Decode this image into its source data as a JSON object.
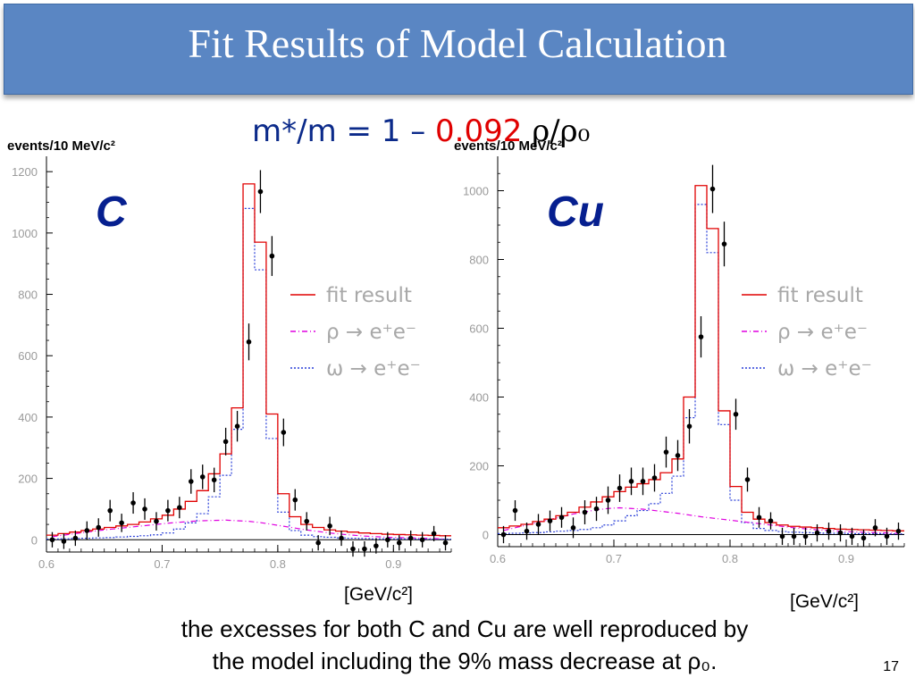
{
  "slide": {
    "title": "Fit Results of Model Calculation",
    "formula_prefix": "m*/m = 1 – ",
    "formula_coefficient": "0.092",
    "formula_suffix": " ρ/ρ₀",
    "caption_line1": "the excesses for both C and Cu are well reproduced by",
    "caption_line2": "the model including the 9% mass decrease at ρ₀.",
    "page_number": "17",
    "colors": {
      "banner": "#5a86c3",
      "nucleus_label": "#061f8f",
      "fit": "#e00000",
      "rho": "#e000e0",
      "omega": "#2a3fd8"
    }
  },
  "chart_data": [
    {
      "type": "histogram",
      "panel_label": "C",
      "ylabel": "events/10 MeV/c²",
      "xlabel_unit": "[GeV/c²]",
      "xlim": [
        0.6,
        0.95
      ],
      "ylim": [
        -40,
        1250
      ],
      "xticks": [
        "0.6",
        "0.7",
        "0.8",
        "0.9"
      ],
      "yticks": [
        "0",
        "200",
        "400",
        "600",
        "800",
        "1000",
        "1200"
      ],
      "legend": [
        "fit result",
        "ρ → e⁺e⁻",
        "ω → e⁺e⁻"
      ],
      "legend_position": "right",
      "bins": {
        "edges": [
          0.6,
          0.61,
          0.62,
          0.63,
          0.64,
          0.65,
          0.66,
          0.67,
          0.68,
          0.69,
          0.7,
          0.71,
          0.72,
          0.73,
          0.74,
          0.75,
          0.76,
          0.77,
          0.78,
          0.79,
          0.8,
          0.81,
          0.82,
          0.83,
          0.84,
          0.85,
          0.86,
          0.87,
          0.88,
          0.89,
          0.9,
          0.91,
          0.92,
          0.93,
          0.94,
          0.95
        ],
        "fit": [
          15,
          20,
          25,
          30,
          35,
          40,
          45,
          50,
          58,
          68,
          80,
          100,
          125,
          160,
          215,
          280,
          430,
          1160,
          970,
          410,
          150,
          75,
          50,
          40,
          32,
          28,
          25,
          22,
          20,
          18,
          17,
          16,
          15,
          14,
          13
        ],
        "rho": [
          10,
          15,
          20,
          25,
          30,
          34,
          38,
          42,
          46,
          50,
          54,
          57,
          60,
          62,
          63,
          64,
          62,
          60,
          56,
          50,
          44,
          38,
          32,
          27,
          22,
          18,
          15,
          12,
          10,
          8,
          7,
          6,
          5,
          4,
          3
        ],
        "omega": [
          2,
          3,
          4,
          5,
          6,
          7,
          9,
          11,
          13,
          16,
          22,
          35,
          55,
          85,
          140,
          210,
          360,
          1080,
          880,
          330,
          90,
          30,
          15,
          10,
          8,
          6,
          5,
          4,
          3,
          3,
          3,
          3,
          2,
          2,
          2
        ]
      },
      "points": {
        "x": [
          0.605,
          0.615,
          0.625,
          0.635,
          0.645,
          0.655,
          0.665,
          0.675,
          0.685,
          0.695,
          0.705,
          0.715,
          0.725,
          0.735,
          0.745,
          0.755,
          0.765,
          0.775,
          0.785,
          0.795,
          0.805,
          0.815,
          0.825,
          0.835,
          0.845,
          0.855,
          0.865,
          0.875,
          0.885,
          0.895,
          0.905,
          0.915,
          0.925,
          0.935,
          0.945
        ],
        "y": [
          0,
          -5,
          5,
          30,
          40,
          95,
          55,
          120,
          100,
          60,
          95,
          105,
          190,
          205,
          195,
          320,
          370,
          645,
          1135,
          925,
          350,
          130,
          60,
          -10,
          45,
          5,
          -30,
          -30,
          -20,
          0,
          -10,
          5,
          0,
          20,
          -10
        ],
        "err": [
          25,
          25,
          25,
          30,
          30,
          35,
          30,
          35,
          35,
          30,
          35,
          35,
          40,
          40,
          40,
          45,
          50,
          60,
          70,
          65,
          45,
          35,
          30,
          25,
          30,
          25,
          25,
          25,
          25,
          25,
          25,
          25,
          25,
          25,
          25
        ]
      }
    },
    {
      "type": "histogram",
      "panel_label": "Cu",
      "ylabel": "events/10 MeV/c²",
      "xlabel_unit": "[GeV/c²]",
      "xlim": [
        0.6,
        0.95
      ],
      "ylim": [
        -35,
        1100
      ],
      "xticks": [
        "0.6",
        "0.7",
        "0.8",
        "0.9"
      ],
      "yticks": [
        "0",
        "200",
        "400",
        "600",
        "800",
        "1000"
      ],
      "legend": [
        "fit result",
        "ρ → e⁺e⁻",
        "ω → e⁺e⁻"
      ],
      "legend_position": "right",
      "bins": {
        "edges": [
          0.6,
          0.61,
          0.62,
          0.63,
          0.64,
          0.65,
          0.66,
          0.67,
          0.68,
          0.69,
          0.7,
          0.71,
          0.72,
          0.73,
          0.74,
          0.75,
          0.76,
          0.77,
          0.78,
          0.79,
          0.8,
          0.81,
          0.82,
          0.83,
          0.84,
          0.85,
          0.86,
          0.87,
          0.88,
          0.89,
          0.9,
          0.91,
          0.92,
          0.93,
          0.94,
          0.95
        ],
        "fit": [
          20,
          25,
          30,
          38,
          45,
          55,
          65,
          80,
          95,
          110,
          125,
          138,
          148,
          160,
          180,
          220,
          400,
          1015,
          890,
          360,
          140,
          65,
          45,
          35,
          28,
          24,
          22,
          20,
          18,
          16,
          15,
          14,
          13,
          12,
          11
        ],
        "rho": [
          12,
          20,
          28,
          36,
          44,
          52,
          60,
          66,
          72,
          76,
          78,
          76,
          74,
          70,
          66,
          62,
          57,
          52,
          48,
          44,
          40,
          36,
          32,
          28,
          24,
          20,
          17,
          14,
          12,
          10,
          8,
          7,
          6,
          5,
          4
        ],
        "omega": [
          3,
          4,
          5,
          6,
          8,
          10,
          12,
          15,
          20,
          28,
          40,
          55,
          70,
          90,
          120,
          170,
          340,
          960,
          820,
          320,
          100,
          35,
          18,
          12,
          9,
          7,
          6,
          5,
          4,
          4,
          3,
          3,
          3,
          2,
          2
        ]
      },
      "points": {
        "x": [
          0.605,
          0.615,
          0.625,
          0.635,
          0.645,
          0.655,
          0.665,
          0.675,
          0.685,
          0.695,
          0.705,
          0.715,
          0.725,
          0.735,
          0.745,
          0.755,
          0.765,
          0.775,
          0.785,
          0.795,
          0.805,
          0.815,
          0.825,
          0.835,
          0.845,
          0.855,
          0.865,
          0.875,
          0.885,
          0.895,
          0.905,
          0.915,
          0.925,
          0.935,
          0.945
        ],
        "y": [
          0,
          70,
          10,
          30,
          40,
          50,
          20,
          65,
          75,
          100,
          135,
          155,
          155,
          165,
          240,
          230,
          315,
          575,
          1005,
          845,
          350,
          160,
          50,
          40,
          -5,
          -5,
          -5,
          5,
          10,
          5,
          -5,
          -10,
          20,
          -5,
          10
        ],
        "err": [
          25,
          30,
          25,
          30,
          30,
          30,
          30,
          35,
          35,
          40,
          40,
          40,
          40,
          40,
          45,
          45,
          50,
          60,
          70,
          65,
          45,
          35,
          30,
          25,
          25,
          25,
          25,
          25,
          25,
          25,
          25,
          25,
          25,
          25,
          25
        ]
      }
    }
  ]
}
